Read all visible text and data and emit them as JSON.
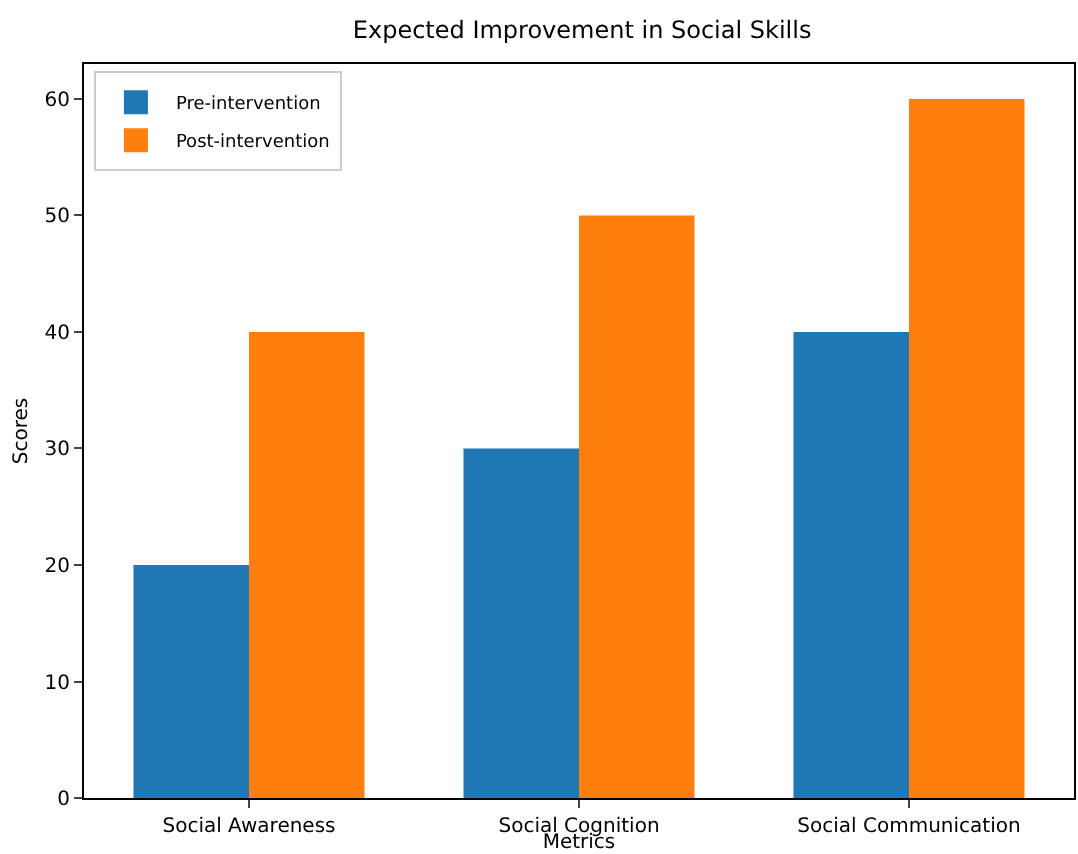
{
  "chart_data": {
    "type": "bar",
    "title": "Expected Improvement in Social Skills",
    "xlabel": "Metrics",
    "ylabel": "Scores",
    "categories": [
      "Social Awareness",
      "Social Cognition",
      "Social Communication"
    ],
    "series": [
      {
        "name": "Pre-intervention",
        "color": "#1f77b4",
        "values": [
          20,
          30,
          40
        ]
      },
      {
        "name": "Post-intervention",
        "color": "#ff7f0e",
        "values": [
          40,
          50,
          60
        ]
      }
    ],
    "ylim": [
      0,
      63
    ],
    "yticks": [
      0,
      10,
      20,
      30,
      40,
      50,
      60
    ],
    "grid": false,
    "legend": "top left"
  }
}
